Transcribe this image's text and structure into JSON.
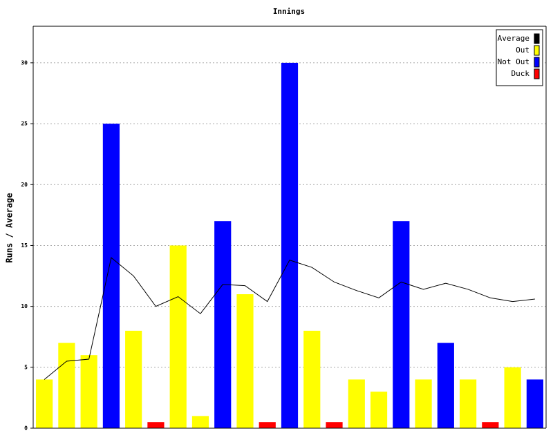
{
  "chart_data": {
    "type": "bar",
    "title": "Innings",
    "ylabel": "Runs / Average",
    "categories": [
      null,
      null,
      null,
      null,
      null,
      null,
      null,
      null,
      null,
      null,
      null,
      null,
      null,
      null,
      null,
      null,
      null,
      null,
      null,
      null,
      null,
      null,
      null
    ],
    "series": [
      {
        "name": "Average",
        "type": "line",
        "color": "#000000",
        "values": [
          4,
          5.5,
          5.67,
          14,
          12.5,
          10,
          10.8,
          9.4,
          11.8,
          11.7,
          10.4,
          13.8,
          13.2,
          12,
          11.3,
          10.7,
          12,
          11.4,
          11.9,
          11.4,
          10.7,
          10.4,
          10.6
        ]
      },
      {
        "name": "Out",
        "type": "bar",
        "color": "#ffff00",
        "values": [
          4,
          7,
          6,
          null,
          8,
          null,
          15,
          1,
          null,
          11,
          null,
          null,
          8,
          null,
          4,
          3,
          null,
          4,
          null,
          4,
          null,
          5,
          null
        ]
      },
      {
        "name": "Not Out",
        "type": "bar",
        "color": "#0000ff",
        "values": [
          null,
          null,
          null,
          25,
          null,
          null,
          null,
          null,
          17,
          null,
          null,
          30,
          null,
          null,
          null,
          null,
          17,
          null,
          7,
          null,
          null,
          null,
          4
        ]
      },
      {
        "name": "Duck",
        "type": "bar",
        "color": "#ff0000",
        "values": [
          null,
          null,
          null,
          null,
          null,
          0.5,
          null,
          null,
          null,
          null,
          0.5,
          null,
          null,
          0.5,
          null,
          null,
          null,
          null,
          null,
          null,
          0.5,
          null,
          null
        ]
      }
    ],
    "ylim": [
      0,
      33
    ],
    "yticks": [
      0,
      5,
      10,
      15,
      20,
      25,
      30
    ],
    "grid": true,
    "legend": "upper right"
  }
}
